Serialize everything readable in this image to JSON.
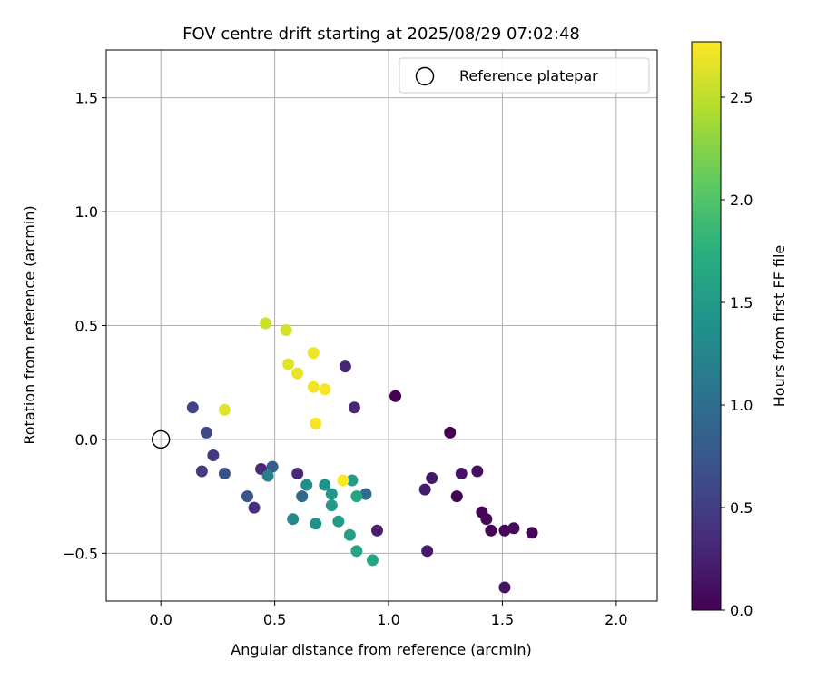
{
  "chart_data": {
    "type": "scatter",
    "title": "FOV centre drift starting at 2025/08/29 07:02:48",
    "xlabel": "Angular distance from reference (arcmin)",
    "ylabel": "Rotation from reference (arcmin)",
    "xlim": [
      -0.24,
      2.18
    ],
    "ylim": [
      -0.71,
      1.71
    ],
    "xticks": [
      0.0,
      0.5,
      1.0,
      1.5,
      2.0
    ],
    "xtick_labels": [
      "0.0",
      "0.5",
      "1.0",
      "1.5",
      "2.0"
    ],
    "yticks": [
      -0.5,
      0.0,
      0.5,
      1.0,
      1.5
    ],
    "ytick_labels": [
      "−0.5",
      "0.0",
      "0.5",
      "1.0",
      "1.5"
    ],
    "grid": true,
    "legend": {
      "placement": "top-right",
      "entries": [
        "Reference platepar"
      ]
    },
    "reference_point": {
      "x": 0.0,
      "y": 0.0
    },
    "colorbar": {
      "label": "Hours from first FF file",
      "colormap": "viridis",
      "range": [
        0.0,
        2.77
      ],
      "ticks": [
        0.0,
        0.5,
        1.0,
        1.5,
        2.0,
        2.5
      ],
      "tick_labels": [
        "0.0",
        "0.5",
        "1.0",
        "1.5",
        "2.0",
        "2.5"
      ]
    },
    "points": [
      {
        "x": 1.03,
        "y": 0.19,
        "c": 0.0
      },
      {
        "x": 1.27,
        "y": 0.03,
        "c": 0.0
      },
      {
        "x": 1.3,
        "y": -0.25,
        "c": 0.02
      },
      {
        "x": 1.41,
        "y": -0.32,
        "c": 0.03
      },
      {
        "x": 1.43,
        "y": -0.35,
        "c": 0.05
      },
      {
        "x": 1.45,
        "y": -0.4,
        "c": 0.03
      },
      {
        "x": 1.51,
        "y": -0.4,
        "c": 0.06
      },
      {
        "x": 1.55,
        "y": -0.39,
        "c": 0.07
      },
      {
        "x": 1.63,
        "y": -0.41,
        "c": 0.04
      },
      {
        "x": 1.51,
        "y": -0.65,
        "c": 0.15
      },
      {
        "x": 1.39,
        "y": -0.14,
        "c": 0.12
      },
      {
        "x": 1.32,
        "y": -0.15,
        "c": 0.14
      },
      {
        "x": 1.19,
        "y": -0.17,
        "c": 0.18
      },
      {
        "x": 1.16,
        "y": -0.22,
        "c": 0.22
      },
      {
        "x": 1.17,
        "y": -0.49,
        "c": 0.2
      },
      {
        "x": 0.95,
        "y": -0.4,
        "c": 0.25
      },
      {
        "x": 0.85,
        "y": 0.14,
        "c": 0.3
      },
      {
        "x": 0.81,
        "y": 0.32,
        "c": 0.28
      },
      {
        "x": 0.6,
        "y": -0.15,
        "c": 0.32
      },
      {
        "x": 0.44,
        "y": -0.13,
        "c": 0.33
      },
      {
        "x": 0.41,
        "y": -0.3,
        "c": 0.38
      },
      {
        "x": 0.23,
        "y": -0.07,
        "c": 0.45
      },
      {
        "x": 0.18,
        "y": -0.14,
        "c": 0.5
      },
      {
        "x": 0.14,
        "y": 0.14,
        "c": 0.55
      },
      {
        "x": 0.2,
        "y": 0.03,
        "c": 0.62
      },
      {
        "x": 0.28,
        "y": -0.15,
        "c": 0.68
      },
      {
        "x": 0.38,
        "y": -0.25,
        "c": 0.72
      },
      {
        "x": 0.49,
        "y": -0.12,
        "c": 0.82
      },
      {
        "x": 0.62,
        "y": -0.25,
        "c": 0.92
      },
      {
        "x": 0.9,
        "y": -0.24,
        "c": 0.95
      },
      {
        "x": 0.47,
        "y": -0.16,
        "c": 1.2
      },
      {
        "x": 0.58,
        "y": -0.35,
        "c": 1.28
      },
      {
        "x": 0.64,
        "y": -0.2,
        "c": 1.35
      },
      {
        "x": 0.72,
        "y": -0.2,
        "c": 1.38
      },
      {
        "x": 0.68,
        "y": -0.37,
        "c": 1.4
      },
      {
        "x": 0.75,
        "y": -0.24,
        "c": 1.45
      },
      {
        "x": 0.75,
        "y": -0.29,
        "c": 1.5
      },
      {
        "x": 0.78,
        "y": -0.36,
        "c": 1.5
      },
      {
        "x": 0.83,
        "y": -0.42,
        "c": 1.55
      },
      {
        "x": 0.84,
        "y": -0.18,
        "c": 1.52
      },
      {
        "x": 0.86,
        "y": -0.25,
        "c": 1.6
      },
      {
        "x": 0.86,
        "y": -0.49,
        "c": 1.62
      },
      {
        "x": 0.93,
        "y": -0.53,
        "c": 1.65
      },
      {
        "x": 0.46,
        "y": 0.51,
        "c": 2.55
      },
      {
        "x": 0.55,
        "y": 0.48,
        "c": 2.6
      },
      {
        "x": 0.56,
        "y": 0.33,
        "c": 2.65
      },
      {
        "x": 0.6,
        "y": 0.29,
        "c": 2.68
      },
      {
        "x": 0.67,
        "y": 0.38,
        "c": 2.7
      },
      {
        "x": 0.67,
        "y": 0.23,
        "c": 2.72
      },
      {
        "x": 0.72,
        "y": 0.22,
        "c": 2.74
      },
      {
        "x": 0.68,
        "y": 0.07,
        "c": 2.75
      },
      {
        "x": 0.28,
        "y": 0.13,
        "c": 2.65
      },
      {
        "x": 0.8,
        "y": -0.18,
        "c": 2.76
      }
    ]
  }
}
